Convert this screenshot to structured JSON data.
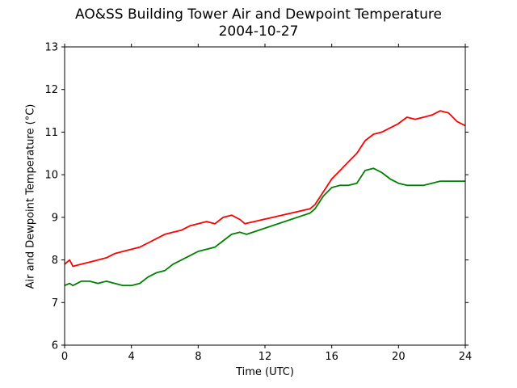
{
  "chart_data": {
    "type": "line",
    "title": "AO&SS Building Tower Air and Dewpoint Temperature",
    "subtitle": "2004-10-27",
    "xlabel": "Time (UTC)",
    "ylabel": "Air and Dewpoint Temperature (°C)",
    "xlim": [
      0,
      24
    ],
    "ylim": [
      6,
      13
    ],
    "xticks": [
      0,
      4,
      8,
      12,
      16,
      20,
      24
    ],
    "yticks": [
      6,
      7,
      8,
      9,
      10,
      11,
      12,
      13
    ],
    "grid": false,
    "legend": "none",
    "series": [
      {
        "color": "#ff0000",
        "x": [
          0,
          0.3,
          0.5,
          1.0,
          1.5,
          2.0,
          2.5,
          3.0,
          3.5,
          4.0,
          4.5,
          5.0,
          5.5,
          6.0,
          6.5,
          7.0,
          7.5,
          8.0,
          8.5,
          9.0,
          9.5,
          10.0,
          10.5,
          10.8,
          14.7,
          15.0,
          15.5,
          16.0,
          16.5,
          17.0,
          17.5,
          18.0,
          18.5,
          19.0,
          19.5,
          20.0,
          20.5,
          21.0,
          21.5,
          22.0,
          22.5,
          23.0,
          23.5,
          24.0
        ],
        "y": [
          7.9,
          8.0,
          7.85,
          7.9,
          7.95,
          8.0,
          8.05,
          8.15,
          8.2,
          8.25,
          8.3,
          8.4,
          8.5,
          8.6,
          8.65,
          8.7,
          8.8,
          8.85,
          8.9,
          8.85,
          9.0,
          9.05,
          8.95,
          8.85,
          9.2,
          9.3,
          9.6,
          9.9,
          10.1,
          10.3,
          10.5,
          10.8,
          10.95,
          11.0,
          11.1,
          11.2,
          11.35,
          11.3,
          11.35,
          11.4,
          11.5,
          11.45,
          11.25,
          11.15
        ]
      },
      {
        "color": "#008000",
        "x": [
          0,
          0.3,
          0.5,
          1.0,
          1.5,
          2.0,
          2.5,
          3.0,
          3.5,
          4.0,
          4.5,
          5.0,
          5.5,
          6.0,
          6.5,
          7.0,
          7.5,
          8.0,
          8.5,
          9.0,
          9.5,
          10.0,
          10.5,
          10.9,
          14.7,
          15.0,
          15.5,
          16.0,
          16.5,
          17.0,
          17.5,
          18.0,
          18.5,
          19.0,
          19.5,
          20.0,
          20.5,
          21.0,
          21.5,
          22.0,
          22.5,
          23.0,
          23.5,
          24.0
        ],
        "y": [
          7.4,
          7.45,
          7.4,
          7.5,
          7.5,
          7.45,
          7.5,
          7.45,
          7.4,
          7.4,
          7.45,
          7.6,
          7.7,
          7.75,
          7.9,
          8.0,
          8.1,
          8.2,
          8.25,
          8.3,
          8.45,
          8.6,
          8.65,
          8.6,
          9.1,
          9.2,
          9.5,
          9.7,
          9.75,
          9.75,
          9.8,
          10.1,
          10.15,
          10.05,
          9.9,
          9.8,
          9.75,
          9.75,
          9.75,
          9.8,
          9.85,
          9.85,
          9.85,
          9.85
        ]
      }
    ]
  }
}
